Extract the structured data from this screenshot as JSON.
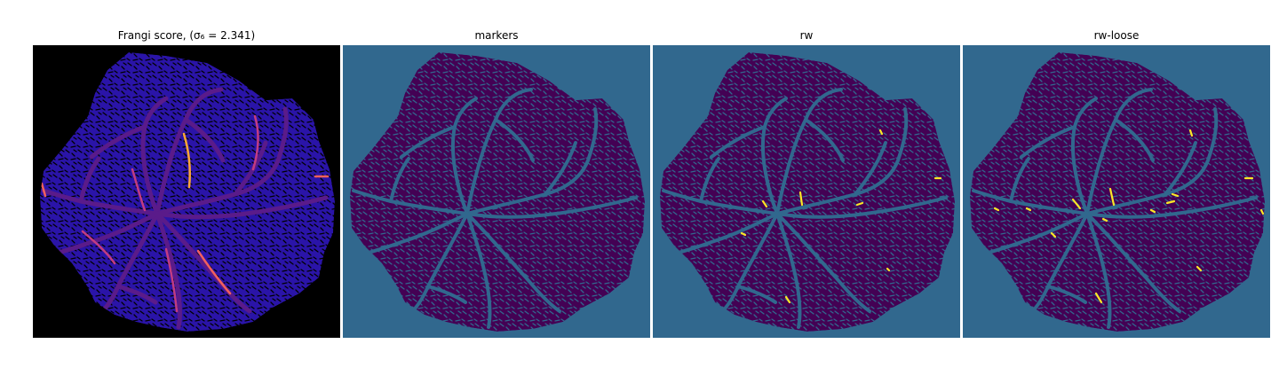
{
  "panels": [
    {
      "title": "Frangi score, (σ₆ = 2.341)",
      "kind": "frangi",
      "background_color": "#000000",
      "texture_color": "#2a14a8",
      "vessel_color": "#5a1b8a",
      "highlight_colors": [
        "#c23c81",
        "#f1605d",
        "#fca636"
      ]
    },
    {
      "title": "markers",
      "kind": "markers",
      "background_color": "#31688e",
      "texture_color": "#440154"
    },
    {
      "title": "rw",
      "kind": "rw",
      "background_color": "#31688e",
      "texture_color": "#440154",
      "highlight_colors": [
        "#fde725"
      ]
    },
    {
      "title": "rw-loose",
      "kind": "rw-loose",
      "background_color": "#31688e",
      "texture_color": "#440154",
      "highlight_colors": [
        "#fde725"
      ]
    }
  ]
}
